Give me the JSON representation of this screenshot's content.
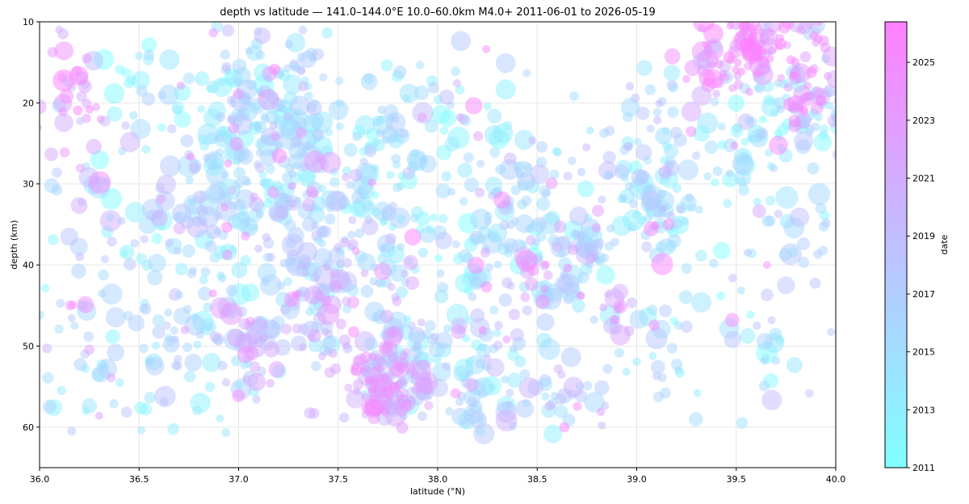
{
  "chart_data": {
    "type": "scatter",
    "title": "depth vs latitude — 141.0–144.0°E  10.0–60.0km  M4.0+  2011-06-01 to 2026-05-19",
    "xlabel": "latitude (°N)",
    "ylabel": "depth (km)",
    "xlim": [
      36.0,
      40.0
    ],
    "ylim": [
      65,
      10
    ],
    "y_inverted": true,
    "grid": true,
    "x_ticks": [
      "36.0",
      "36.5",
      "37.0",
      "37.5",
      "38.0",
      "38.5",
      "39.0",
      "39.5",
      "40.0"
    ],
    "y_ticks": [
      "10",
      "20",
      "30",
      "40",
      "50",
      "60"
    ],
    "colorbar": {
      "label": "date",
      "colormap": "cool",
      "colors": [
        "#80ffff",
        "#ff80ff"
      ],
      "range": [
        2011.0,
        2026.4
      ],
      "ticks": [
        "2011",
        "2013",
        "2015",
        "2017",
        "2019",
        "2021",
        "2023",
        "2025"
      ]
    },
    "point_alpha": 0.5,
    "clusters": [
      {
        "lat": 36.15,
        "depth": 18.0,
        "n": 30,
        "spread_lat": 0.1,
        "spread_depth": 4.0,
        "date": 2023.5
      },
      {
        "lat": 36.3,
        "depth": 30.0,
        "n": 20,
        "spread_lat": 0.2,
        "spread_depth": 4.0,
        "date": 2018.5
      },
      {
        "lat": 36.35,
        "depth": 47.0,
        "n": 45,
        "spread_lat": 0.2,
        "spread_depth": 5.0,
        "date": 2015.0
      },
      {
        "lat": 36.3,
        "depth": 55.0,
        "n": 20,
        "spread_lat": 0.2,
        "spread_depth": 4.0,
        "date": 2013.0
      },
      {
        "lat": 36.6,
        "depth": 18.0,
        "n": 25,
        "spread_lat": 0.15,
        "spread_depth": 5.0,
        "date": 2012.5
      },
      {
        "lat": 36.75,
        "depth": 33.0,
        "n": 60,
        "spread_lat": 0.2,
        "spread_depth": 5.0,
        "date": 2015.5
      },
      {
        "lat": 36.8,
        "depth": 50.0,
        "n": 45,
        "spread_lat": 0.2,
        "spread_depth": 5.0,
        "date": 2015.0
      },
      {
        "lat": 36.95,
        "depth": 30.0,
        "n": 70,
        "spread_lat": 0.15,
        "spread_depth": 6.0,
        "date": 2014.5
      },
      {
        "lat": 37.05,
        "depth": 18.0,
        "n": 40,
        "spread_lat": 0.15,
        "spread_depth": 4.0,
        "date": 2014.0
      },
      {
        "lat": 37.05,
        "depth": 50.5,
        "n": 35,
        "spread_lat": 0.08,
        "spread_depth": 3.0,
        "date": 2021.0
      },
      {
        "lat": 37.2,
        "depth": 25.0,
        "n": 90,
        "spread_lat": 0.12,
        "spread_depth": 6.0,
        "date": 2016.5
      },
      {
        "lat": 37.3,
        "depth": 40.0,
        "n": 70,
        "spread_lat": 0.12,
        "spread_depth": 5.0,
        "date": 2018.0
      },
      {
        "lat": 37.45,
        "depth": 47.0,
        "n": 30,
        "spread_lat": 0.1,
        "spread_depth": 4.0,
        "date": 2021.5
      },
      {
        "lat": 37.35,
        "depth": 15.0,
        "n": 25,
        "spread_lat": 0.1,
        "spread_depth": 4.0,
        "date": 2014.0
      },
      {
        "lat": 37.6,
        "depth": 28.0,
        "n": 60,
        "spread_lat": 0.15,
        "spread_depth": 5.0,
        "date": 2013.0
      },
      {
        "lat": 37.6,
        "depth": 40.0,
        "n": 40,
        "spread_lat": 0.15,
        "spread_depth": 4.0,
        "date": 2016.0
      },
      {
        "lat": 37.75,
        "depth": 55.0,
        "n": 130,
        "spread_lat": 0.1,
        "spread_depth": 2.5,
        "date": 2021.5
      },
      {
        "lat": 37.9,
        "depth": 49.0,
        "n": 30,
        "spread_lat": 0.1,
        "spread_depth": 3.0,
        "date": 2017.0
      },
      {
        "lat": 37.85,
        "depth": 35.0,
        "n": 30,
        "spread_lat": 0.15,
        "spread_depth": 5.0,
        "date": 2013.0
      },
      {
        "lat": 38.0,
        "depth": 20.0,
        "n": 25,
        "spread_lat": 0.15,
        "spread_depth": 3.0,
        "date": 2014.0
      },
      {
        "lat": 38.2,
        "depth": 55.0,
        "n": 50,
        "spread_lat": 0.12,
        "spread_depth": 4.0,
        "date": 2015.0
      },
      {
        "lat": 38.3,
        "depth": 38.0,
        "n": 50,
        "spread_lat": 0.15,
        "spread_depth": 5.0,
        "date": 2014.0
      },
      {
        "lat": 38.4,
        "depth": 30.0,
        "n": 30,
        "spread_lat": 0.12,
        "spread_depth": 4.0,
        "date": 2016.0
      },
      {
        "lat": 38.45,
        "depth": 42.0,
        "n": 20,
        "spread_lat": 0.06,
        "spread_depth": 3.0,
        "date": 2021.5
      },
      {
        "lat": 38.45,
        "depth": 55.0,
        "n": 30,
        "spread_lat": 0.12,
        "spread_depth": 4.0,
        "date": 2017.0
      },
      {
        "lat": 38.7,
        "depth": 40.0,
        "n": 50,
        "spread_lat": 0.1,
        "spread_depth": 3.0,
        "date": 2016.5
      },
      {
        "lat": 38.7,
        "depth": 55.0,
        "n": 20,
        "spread_lat": 0.1,
        "spread_depth": 3.0,
        "date": 2018.0
      },
      {
        "lat": 38.9,
        "depth": 46.0,
        "n": 12,
        "spread_lat": 0.03,
        "spread_depth": 1.5,
        "date": 2022.0
      },
      {
        "lat": 38.95,
        "depth": 31.0,
        "n": 35,
        "spread_lat": 0.15,
        "spread_depth": 4.0,
        "date": 2014.5
      },
      {
        "lat": 39.1,
        "depth": 33.0,
        "n": 50,
        "spread_lat": 0.1,
        "spread_depth": 3.0,
        "date": 2015.0
      },
      {
        "lat": 39.1,
        "depth": 20.0,
        "n": 20,
        "spread_lat": 0.1,
        "spread_depth": 3.0,
        "date": 2017.5
      },
      {
        "lat": 39.1,
        "depth": 50.0,
        "n": 25,
        "spread_lat": 0.12,
        "spread_depth": 4.0,
        "date": 2015.5
      },
      {
        "lat": 39.45,
        "depth": 15.0,
        "n": 60,
        "spread_lat": 0.1,
        "spread_depth": 2.5,
        "date": 2024.5
      },
      {
        "lat": 39.5,
        "depth": 27.0,
        "n": 40,
        "spread_lat": 0.12,
        "spread_depth": 4.0,
        "date": 2014.0
      },
      {
        "lat": 39.6,
        "depth": 12.5,
        "n": 35,
        "spread_lat": 0.05,
        "spread_depth": 2.0,
        "date": 2024.5
      },
      {
        "lat": 39.85,
        "depth": 16.0,
        "n": 60,
        "spread_lat": 0.08,
        "spread_depth": 4.0,
        "date": 2023.5
      },
      {
        "lat": 39.8,
        "depth": 22.0,
        "n": 50,
        "spread_lat": 0.12,
        "spread_depth": 3.0,
        "date": 2014.0
      },
      {
        "lat": 39.85,
        "depth": 35.0,
        "n": 20,
        "spread_lat": 0.12,
        "spread_depth": 4.0,
        "date": 2016.0
      },
      {
        "lat": 39.65,
        "depth": 50.0,
        "n": 25,
        "spread_lat": 0.15,
        "spread_depth": 5.0,
        "date": 2015.0
      },
      {
        "lat": 38.0,
        "depth": 36.0,
        "n": 200,
        "spread_lat": 1.15,
        "spread_depth": 13.0,
        "date": 2014.5
      }
    ]
  }
}
